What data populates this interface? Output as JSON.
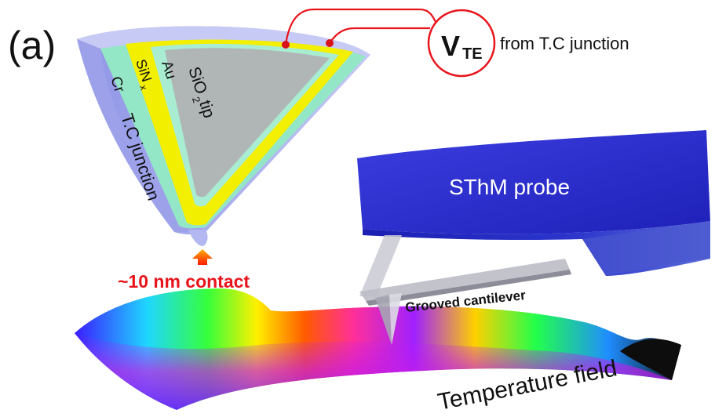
{
  "panel_label": "(a)",
  "voltmeter": {
    "symbol": "V",
    "subscript": "TE",
    "caption": "from T.C junction"
  },
  "tip_layers": {
    "cr": "Cr",
    "sinx": "SiN",
    "sinx_sub": "x",
    "au": "Au",
    "sio2_prefix": "SiO",
    "sio2_sub": "2",
    "sio2_suffix": " tip"
  },
  "junction_label": "T.C junction",
  "contact_label": "~10 nm contact",
  "probe_label": "SThM probe",
  "cantilever_label": "Grooved cantilever",
  "field_label": "Temperature field",
  "colors": {
    "wire": "#e8141b",
    "contact_text": "#e8141b",
    "probe_body": "#2a2ccf",
    "cr_layer": "#a9aef0",
    "sinx_layer": "#92e8c8",
    "au_layer": "#f4f000",
    "sio2_core": "#b2b7b8"
  }
}
